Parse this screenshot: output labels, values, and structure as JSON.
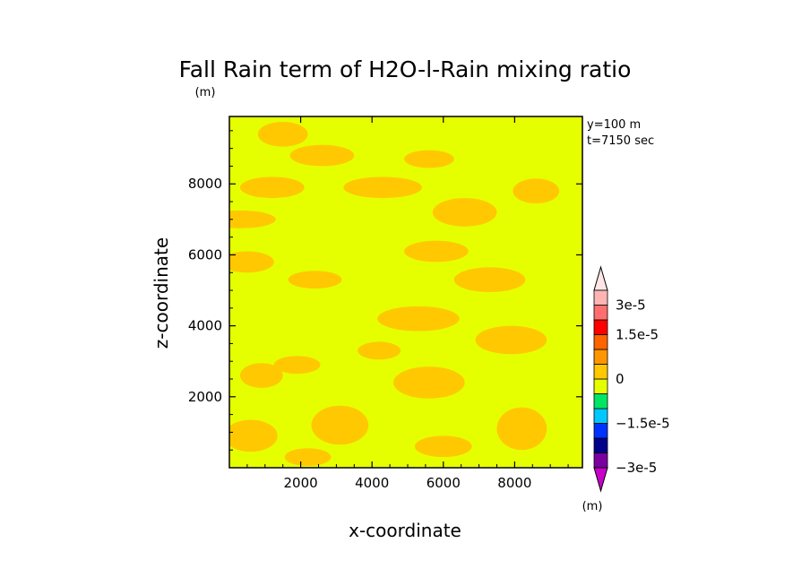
{
  "chart_data": {
    "type": "heatmap",
    "title": "Fall Rain term of H2O-l-Rain mixing ratio",
    "subtitle": "(m)",
    "annotations": [
      "y=100 m",
      "t=7150 sec"
    ],
    "xlabel": "x-coordinate",
    "ylabel": "z-coordinate",
    "xlim": [
      0,
      9900
    ],
    "ylim": [
      0,
      9900
    ],
    "xticks": [
      2000,
      4000,
      6000,
      8000
    ],
    "yticks": [
      2000,
      4000,
      6000,
      8000
    ],
    "colors": {
      "background_field": "#e6ff00",
      "positive_patch": "#ffc800"
    },
    "patches": [
      {
        "x": 1500,
        "z": 9400,
        "w": 1400,
        "h": 700
      },
      {
        "x": 2600,
        "z": 8800,
        "w": 1800,
        "h": 600
      },
      {
        "x": 5600,
        "z": 8700,
        "w": 1400,
        "h": 500
      },
      {
        "x": 1200,
        "z": 7900,
        "w": 1800,
        "h": 600
      },
      {
        "x": 4300,
        "z": 7900,
        "w": 2200,
        "h": 600
      },
      {
        "x": 8600,
        "z": 7800,
        "w": 1300,
        "h": 700
      },
      {
        "x": 300,
        "z": 7000,
        "w": 2000,
        "h": 500
      },
      {
        "x": 6600,
        "z": 7200,
        "w": 1800,
        "h": 800
      },
      {
        "x": 500,
        "z": 5800,
        "w": 1500,
        "h": 600
      },
      {
        "x": 5800,
        "z": 6100,
        "w": 1800,
        "h": 600
      },
      {
        "x": 2400,
        "z": 5300,
        "w": 1500,
        "h": 500
      },
      {
        "x": 7300,
        "z": 5300,
        "w": 2000,
        "h": 700
      },
      {
        "x": 5300,
        "z": 4200,
        "w": 2300,
        "h": 700
      },
      {
        "x": 7900,
        "z": 3600,
        "w": 2000,
        "h": 800
      },
      {
        "x": 900,
        "z": 2600,
        "w": 1200,
        "h": 700
      },
      {
        "x": 1900,
        "z": 2900,
        "w": 1300,
        "h": 500
      },
      {
        "x": 5600,
        "z": 2400,
        "w": 2000,
        "h": 900
      },
      {
        "x": 3100,
        "z": 1200,
        "w": 1600,
        "h": 1100
      },
      {
        "x": 600,
        "z": 900,
        "w": 1500,
        "h": 900
      },
      {
        "x": 8200,
        "z": 1100,
        "w": 1400,
        "h": 1200
      },
      {
        "x": 6000,
        "z": 600,
        "w": 1600,
        "h": 600
      },
      {
        "x": 2200,
        "z": 300,
        "w": 1300,
        "h": 500
      },
      {
        "x": 4200,
        "z": 3300,
        "w": 1200,
        "h": 500
      }
    ],
    "colorbar": {
      "unit": "(m)",
      "colors": [
        "#7a00a0",
        "#00008c",
        "#0032ff",
        "#00c8ff",
        "#00e664",
        "#e6ff00",
        "#ffc800",
        "#ff9600",
        "#ff6400",
        "#ff0000",
        "#ff6e6e",
        "#ffb4b4"
      ],
      "top_triangle": "#ffe6e6",
      "bottom_triangle": "#c800c8",
      "labels": [
        {
          "text": "3e-5",
          "index": 11
        },
        {
          "text": "1.5e-5",
          "index": 9
        },
        {
          "text": "0",
          "index": 6
        },
        {
          "text": "−1.5e-5",
          "index": 3
        },
        {
          "text": "−3e-5",
          "index": 0
        }
      ]
    }
  }
}
